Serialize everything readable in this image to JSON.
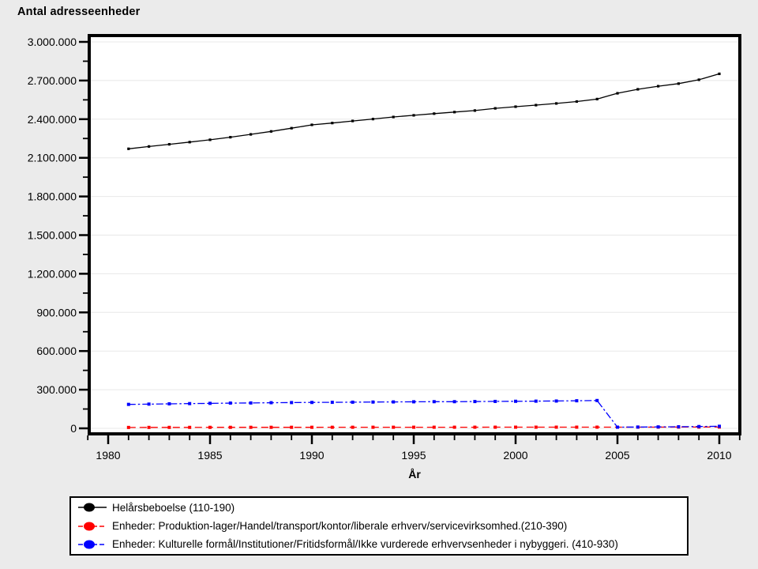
{
  "chart_data": {
    "type": "line",
    "title": "Antal adresseenheder",
    "xlabel": "År",
    "ylabel": "",
    "xlim": [
      1980,
      2010
    ],
    "ylim": [
      0,
      3000000
    ],
    "grid": "horizontal",
    "legend_position": "bottom",
    "x": [
      1981,
      1982,
      1983,
      1984,
      1985,
      1986,
      1987,
      1988,
      1989,
      1990,
      1991,
      1992,
      1993,
      1994,
      1995,
      1996,
      1997,
      1998,
      1999,
      2000,
      2001,
      2002,
      2003,
      2004,
      2005,
      2006,
      2007,
      2008,
      2009,
      2010
    ],
    "series": [
      {
        "name": "Helårsbeboelse (110-190)",
        "color": "#000000",
        "style": "solid",
        "values": [
          2170000,
          2188000,
          2205000,
          2222000,
          2240000,
          2260000,
          2282000,
          2305000,
          2330000,
          2356000,
          2370000,
          2386000,
          2401000,
          2417000,
          2430000,
          2443000,
          2455000,
          2467000,
          2484000,
          2497000,
          2509000,
          2522000,
          2537000,
          2556000,
          2601000,
          2632000,
          2656000,
          2676000,
          2706000,
          2752000
        ]
      },
      {
        "name": "Enheder: Produktion-lager/Handel/transport/kontor/liberale erhverv/servicevirksomhed.(210-390)",
        "color": "#ff0000",
        "style": "dashed",
        "values": [
          7000,
          7200,
          7400,
          7500,
          7700,
          7800,
          8000,
          8000,
          8100,
          8200,
          8300,
          8400,
          8500,
          8500,
          8600,
          8700,
          8700,
          8800,
          8900,
          9000,
          9000,
          9100,
          9100,
          9200,
          9000,
          9200,
          9400,
          9600,
          9800,
          10000
        ]
      },
      {
        "name": "Enheder: Kulturelle formål/Institutioner/Fritidsformål/Ikke vurderede erhvervsenheder i nybyggeri. (410-930)",
        "color": "#0000ff",
        "style": "dashdot",
        "values": [
          186000,
          188000,
          190000,
          192000,
          194000,
          196000,
          197000,
          199000,
          200000,
          201000,
          202000,
          203000,
          204000,
          205000,
          206000,
          207000,
          207000,
          208000,
          209000,
          210000,
          211000,
          212000,
          214000,
          216000,
          9000,
          10000,
          11000,
          12000,
          14000,
          16000
        ]
      }
    ],
    "y_major_ticks": [
      {
        "value": 0,
        "label": "0"
      },
      {
        "value": 300000,
        "label": "300.000"
      },
      {
        "value": 600000,
        "label": "600.000"
      },
      {
        "value": 900000,
        "label": "900.000"
      },
      {
        "value": 1200000,
        "label": "1.200.000"
      },
      {
        "value": 1500000,
        "label": "1.500.000"
      },
      {
        "value": 1800000,
        "label": "1.800.000"
      },
      {
        "value": 2100000,
        "label": "2.100.000"
      },
      {
        "value": 2400000,
        "label": "2.400.000"
      },
      {
        "value": 2700000,
        "label": "2.700.000"
      },
      {
        "value": 3000000,
        "label": "3.000.000"
      }
    ],
    "x_major_ticks": [
      {
        "value": 1980,
        "label": "1980"
      },
      {
        "value": 1985,
        "label": "1985"
      },
      {
        "value": 1990,
        "label": "1990"
      },
      {
        "value": 1995,
        "label": "1995"
      },
      {
        "value": 2000,
        "label": "2000"
      },
      {
        "value": 2005,
        "label": "2005"
      },
      {
        "value": 2010,
        "label": "2010"
      }
    ]
  }
}
